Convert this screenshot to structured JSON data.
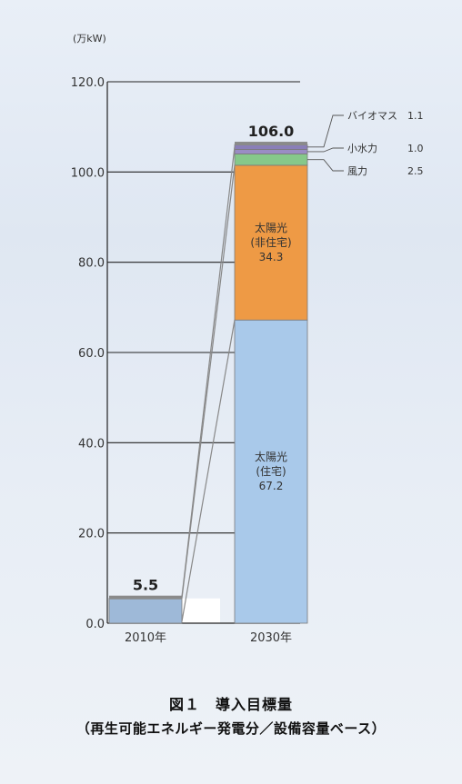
{
  "chart_data": {
    "type": "bar",
    "stacked": true,
    "unit_label": "(万kW)",
    "ylim": [
      0,
      120
    ],
    "yticks": [
      "0.0",
      "20.0",
      "40.0",
      "60.0",
      "80.0",
      "100.0",
      "120.0"
    ],
    "categories": [
      "2010年",
      "2030年"
    ],
    "totals": [
      "5.5",
      "106.0"
    ],
    "series": [
      {
        "key": "residential",
        "values": [
          5.5,
          67.2
        ],
        "color": "#a9c9ea",
        "label_lines": [
          "太陽光",
          "(住宅)",
          "67.2"
        ]
      },
      {
        "key": "nonresidential",
        "values": [
          0,
          34.3
        ],
        "color": "#ee9a45",
        "label_lines": [
          "太陽光",
          "(非住宅)",
          "34.3"
        ]
      },
      {
        "name": "風力",
        "value_label": "2.5",
        "values": [
          0,
          2.5
        ],
        "color": "#86c88a"
      },
      {
        "name": "小水力",
        "value_label": "1.0",
        "values": [
          0,
          1.0
        ],
        "color": "#9a8cc4"
      },
      {
        "name": "バイオマス",
        "value_label": "1.1",
        "values": [
          0,
          1.1
        ],
        "color": "#8a7fb8"
      }
    ]
  },
  "caption": {
    "line1": "図１　導入目標量",
    "line2": "（再生可能エネルギー発電分／設備容量ベース）"
  }
}
